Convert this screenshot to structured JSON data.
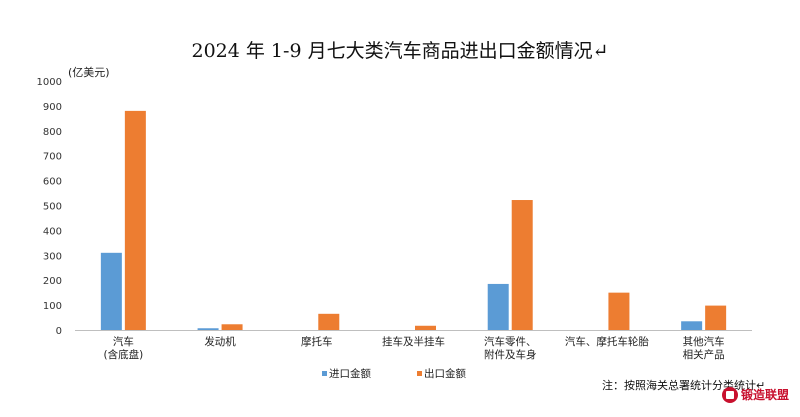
{
  "chart_data": {
    "type": "bar",
    "title": "2024 年 1-9 月七大类汽车商品进出口金额情况↵",
    "unit_label": "(亿美元)",
    "categories": [
      [
        "汽车",
        "(含底盘)"
      ],
      [
        "发动机"
      ],
      [
        "摩托车"
      ],
      [
        "挂车及半挂车"
      ],
      [
        "汽车零件、",
        "附件及车身"
      ],
      [
        "汽车、摩托车轮胎"
      ],
      [
        "其他汽车",
        "相关产品"
      ]
    ],
    "series": [
      {
        "name": "进口金额",
        "color": "#5b9bd5",
        "values": [
          310,
          7,
          0,
          0,
          185,
          0,
          35
        ]
      },
      {
        "name": "出口金额",
        "color": "#ed7d31",
        "values": [
          880,
          23,
          65,
          17,
          522,
          150,
          98
        ]
      }
    ],
    "ylim": [
      0,
      1000
    ],
    "yticks": [
      0,
      100,
      200,
      300,
      400,
      500,
      600,
      700,
      800,
      900,
      1000
    ],
    "grid": false,
    "legend_position": "bottom",
    "note": "注：按照海关总署统计分类统计↵",
    "watermark_text": "锻造联盟"
  }
}
